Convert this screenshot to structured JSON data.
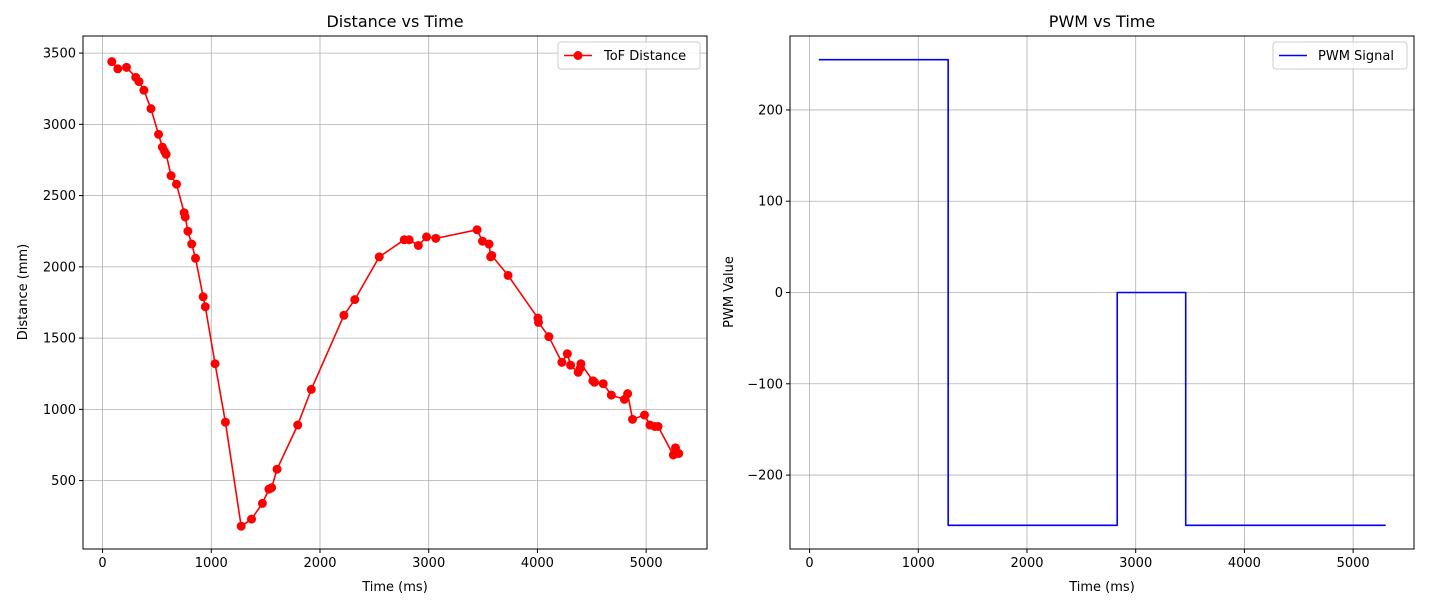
{
  "chart_data": [
    {
      "type": "line",
      "title": "Distance vs Time",
      "xlabel": "Time (ms)",
      "ylabel": "Distance (mm)",
      "xlim": [
        -180,
        5560
      ],
      "ylim": [
        20,
        3620
      ],
      "xticks": [
        0,
        1000,
        2000,
        3000,
        4000,
        5000
      ],
      "yticks": [
        500,
        1000,
        1500,
        2000,
        2500,
        3000,
        3500
      ],
      "grid": true,
      "legend_position": "top-right",
      "series": [
        {
          "name": "ToF Distance",
          "color": "#ff0000",
          "marker": "circle",
          "x": [
            85,
            140,
            220,
            305,
            335,
            380,
            445,
            515,
            550,
            570,
            585,
            630,
            680,
            750,
            760,
            785,
            820,
            855,
            925,
            945,
            1035,
            1130,
            1275,
            1370,
            1470,
            1530,
            1555,
            1605,
            1795,
            1920,
            2220,
            2320,
            2545,
            2775,
            2820,
            2905,
            2980,
            3065,
            3445,
            3495,
            3555,
            3570,
            3580,
            3730,
            4005,
            4010,
            4105,
            4225,
            4275,
            4305,
            4375,
            4395,
            4400,
            4510,
            4525,
            4605,
            4680,
            4800,
            4830,
            4875,
            4985,
            5035,
            5080,
            5110,
            5250,
            5270,
            5300
          ],
          "y": [
            3440,
            3390,
            3400,
            3330,
            3300,
            3240,
            3110,
            2930,
            2840,
            2810,
            2790,
            2640,
            2580,
            2380,
            2350,
            2250,
            2160,
            2060,
            1790,
            1720,
            1320,
            910,
            180,
            230,
            340,
            440,
            450,
            580,
            890,
            1140,
            1660,
            1770,
            2070,
            2190,
            2190,
            2150,
            2210,
            2200,
            2260,
            2180,
            2160,
            2070,
            2080,
            1940,
            1640,
            1610,
            1510,
            1330,
            1390,
            1310,
            1260,
            1290,
            1320,
            1200,
            1190,
            1180,
            1100,
            1070,
            1110,
            930,
            960,
            890,
            880,
            880,
            680,
            730,
            690
          ]
        }
      ]
    },
    {
      "type": "line",
      "title": "PWM vs Time",
      "xlabel": "Time (ms)",
      "ylabel": "PWM Value",
      "xlim": [
        -180,
        5560
      ],
      "ylim": [
        -281,
        281
      ],
      "xticks": [
        0,
        1000,
        2000,
        3000,
        4000,
        5000
      ],
      "yticks": [
        -200,
        -100,
        0,
        100,
        200
      ],
      "grid": true,
      "legend_position": "top-right",
      "series": [
        {
          "name": "PWM Signal",
          "color": "#0000ff",
          "marker": "none",
          "step": true,
          "x": [
            85,
            1275,
            1275,
            2830,
            2830,
            3460,
            3460,
            5300
          ],
          "y": [
            255,
            255,
            -255,
            -255,
            0,
            0,
            -255,
            -255
          ]
        }
      ]
    }
  ]
}
